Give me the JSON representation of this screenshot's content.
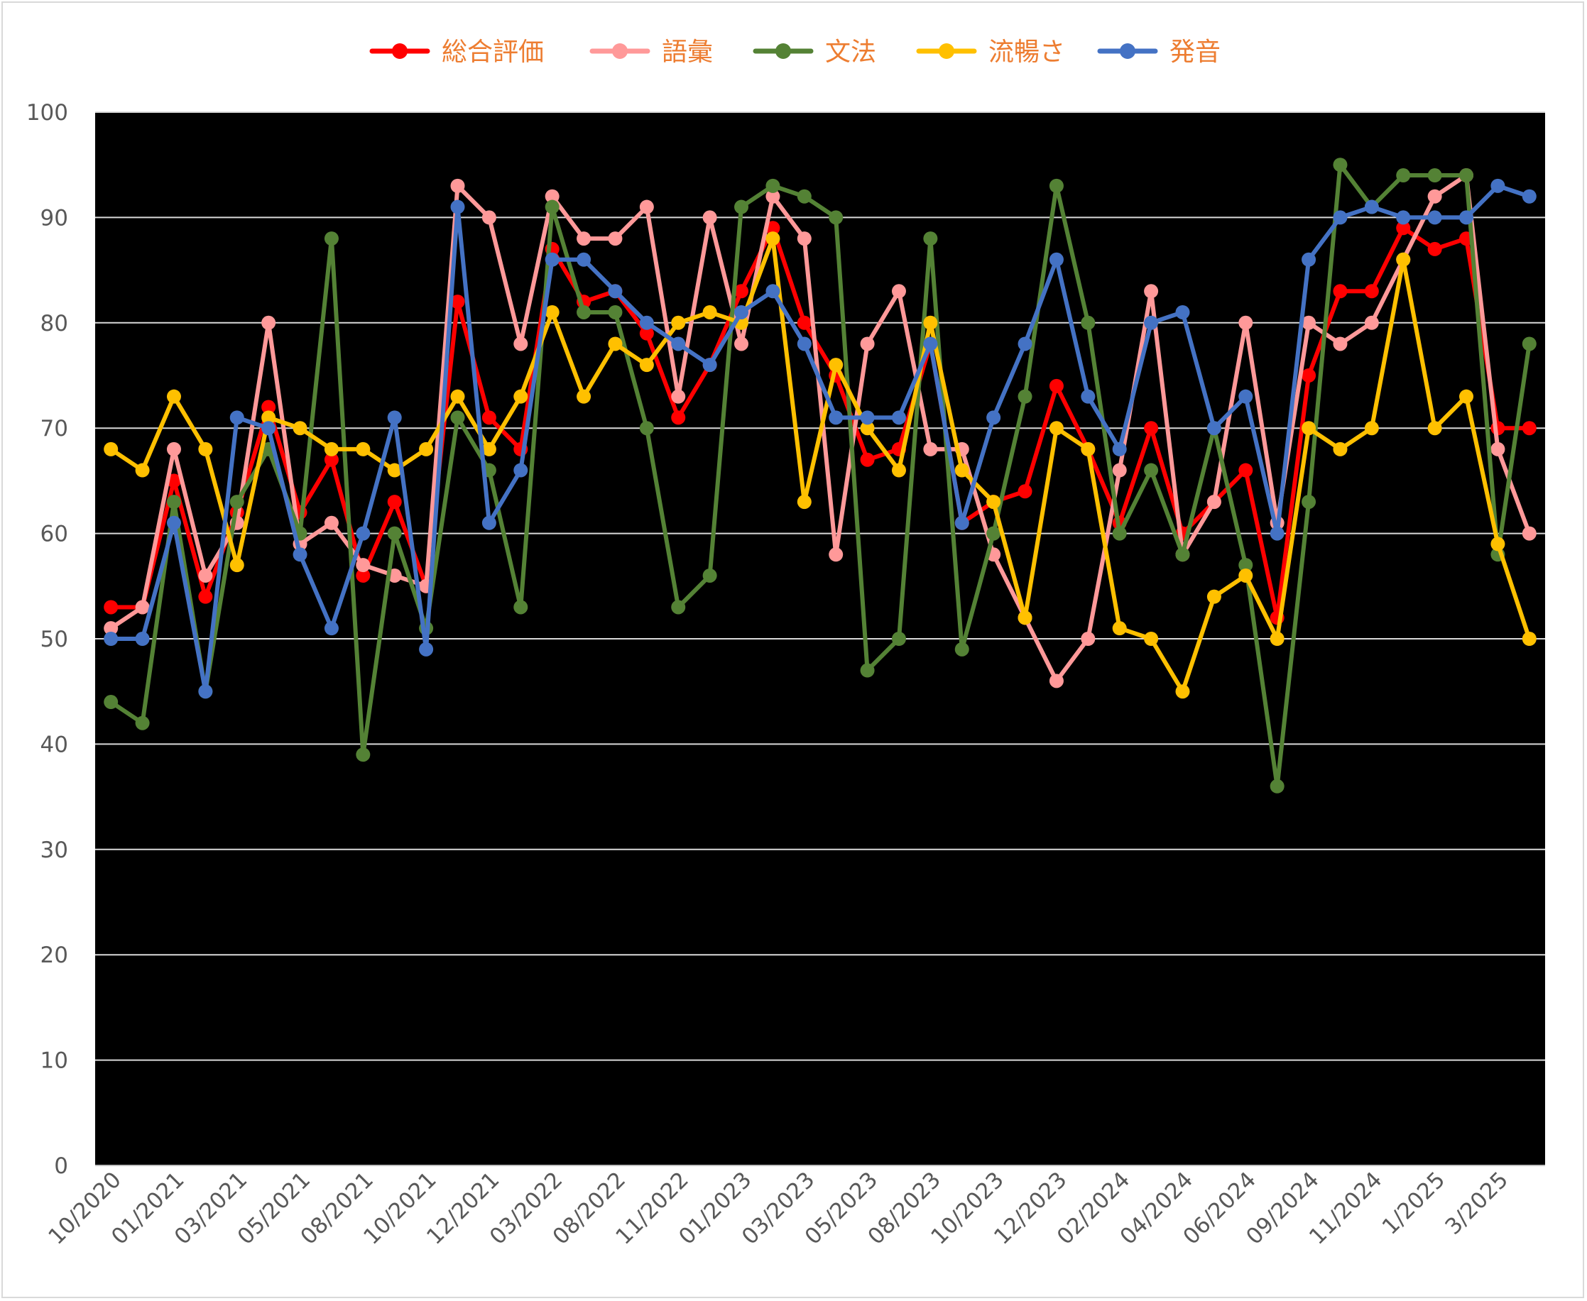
{
  "chart_data": {
    "type": "line",
    "title": "",
    "xlabel": "",
    "ylabel": "",
    "ylim": [
      0,
      100
    ],
    "yticks": [
      0,
      10,
      20,
      30,
      40,
      50,
      60,
      70,
      80,
      90,
      100
    ],
    "grid": true,
    "legend_position": "top",
    "plot_background": "#000000",
    "legend_text_color": "#ed7d31",
    "x_tick_labels": [
      {
        "index": 0,
        "label": "10/2020"
      },
      {
        "index": 2,
        "label": "01/2021"
      },
      {
        "index": 4,
        "label": "03/2021"
      },
      {
        "index": 6,
        "label": "05/2021"
      },
      {
        "index": 8,
        "label": "08/2021"
      },
      {
        "index": 10,
        "label": "10/2021"
      },
      {
        "index": 12,
        "label": "12/2021"
      },
      {
        "index": 14,
        "label": "03/2022"
      },
      {
        "index": 16,
        "label": "08/2022"
      },
      {
        "index": 18,
        "label": "11/2022"
      },
      {
        "index": 20,
        "label": "01/2023"
      },
      {
        "index": 22,
        "label": "03/2023"
      },
      {
        "index": 24,
        "label": "05/2023"
      },
      {
        "index": 26,
        "label": "08/2023"
      },
      {
        "index": 28,
        "label": "10/2023"
      },
      {
        "index": 30,
        "label": "12/2023"
      },
      {
        "index": 32,
        "label": "02/2024"
      },
      {
        "index": 34,
        "label": "04/2024"
      },
      {
        "index": 36,
        "label": "06/2024"
      },
      {
        "index": 38,
        "label": "09/2024"
      },
      {
        "index": 40,
        "label": "11/2024"
      },
      {
        "index": 42,
        "label": "1/2025"
      },
      {
        "index": 44,
        "label": "3/2025"
      }
    ],
    "series": [
      {
        "name": "総合評価",
        "color": "#ff0000",
        "values": [
          53,
          53,
          65,
          54,
          62,
          72,
          62,
          67,
          56,
          63,
          55,
          82,
          71,
          68,
          87,
          82,
          83,
          79,
          71,
          76,
          83,
          89,
          80,
          75,
          67,
          68,
          78,
          61,
          63,
          64,
          74,
          68,
          61,
          70,
          60,
          63,
          66,
          52,
          75,
          83,
          83,
          89,
          87,
          88,
          70,
          70
        ]
      },
      {
        "name": "語彙",
        "color": "#ff9999",
        "values": [
          51,
          53,
          68,
          56,
          61,
          80,
          59,
          61,
          57,
          56,
          55,
          93,
          90,
          78,
          92,
          88,
          88,
          91,
          73,
          90,
          78,
          92,
          88,
          58,
          78,
          83,
          68,
          68,
          58,
          52,
          46,
          50,
          66,
          83,
          58,
          63,
          80,
          61,
          80,
          78,
          80,
          86,
          92,
          94,
          68,
          60
        ]
      },
      {
        "name": "文法",
        "color": "#548235",
        "values": [
          44,
          42,
          63,
          45,
          63,
          68,
          60,
          88,
          39,
          60,
          51,
          71,
          66,
          53,
          91,
          81,
          81,
          70,
          53,
          56,
          91,
          93,
          92,
          90,
          47,
          50,
          88,
          49,
          60,
          73,
          93,
          80,
          60,
          66,
          58,
          70,
          57,
          36,
          63,
          95,
          91,
          94,
          94,
          94,
          58,
          78
        ]
      },
      {
        "name": "流暢さ",
        "color": "#ffc000",
        "values": [
          68,
          66,
          73,
          68,
          57,
          71,
          70,
          68,
          68,
          66,
          68,
          73,
          68,
          73,
          81,
          73,
          78,
          76,
          80,
          81,
          80,
          88,
          63,
          76,
          70,
          66,
          80,
          66,
          63,
          52,
          70,
          68,
          51,
          50,
          45,
          54,
          56,
          50,
          70,
          68,
          70,
          86,
          70,
          73,
          59,
          50
        ]
      },
      {
        "name": "発音",
        "color": "#4472c4",
        "values": [
          50,
          50,
          61,
          45,
          71,
          70,
          58,
          51,
          60,
          71,
          49,
          91,
          61,
          66,
          86,
          86,
          83,
          80,
          78,
          76,
          81,
          83,
          78,
          71,
          71,
          71,
          78,
          61,
          71,
          78,
          86,
          73,
          68,
          80,
          81,
          70,
          73,
          60,
          86,
          90,
          91,
          90,
          90,
          90,
          93,
          92
        ]
      }
    ]
  }
}
